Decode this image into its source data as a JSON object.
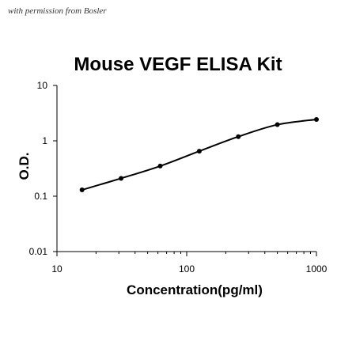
{
  "watermark": "with permission from Bosler",
  "chart_data": {
    "type": "line",
    "title": "Mouse VEGF ELISA Kit",
    "xlabel": "Concentration(pg/ml)",
    "ylabel": "O.D.",
    "xscale": "log",
    "yscale": "log",
    "xlim": [
      10,
      1000
    ],
    "ylim": [
      0.01,
      10
    ],
    "x_ticks": [
      "10",
      "100",
      "1000"
    ],
    "y_ticks": [
      "0.01",
      "0.1",
      "1",
      "10"
    ],
    "grid": false,
    "legend": "none",
    "series": [
      {
        "x": [
          15.6,
          31.2,
          62.5,
          125,
          250,
          500,
          1000
        ],
        "y": [
          0.13,
          0.21,
          0.35,
          0.65,
          1.19,
          1.96,
          2.43
        ]
      }
    ],
    "line_color": "#000000"
  }
}
